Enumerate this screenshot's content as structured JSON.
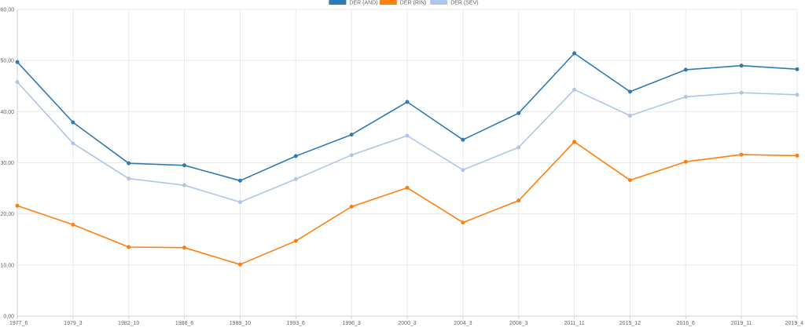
{
  "chart_data": {
    "type": "line",
    "categories": [
      "1977_6",
      "1979_3",
      "1982_10",
      "1986_6",
      "1989_10",
      "1993_6",
      "1996_3",
      "2000_3",
      "2004_3",
      "2008_3",
      "2011_11",
      "2015_12",
      "2016_6",
      "2019_11",
      "2019_4"
    ],
    "y_ticks": [
      "0,00",
      "10,00",
      "20,00",
      "30,00",
      "40,00",
      "50,00",
      "60,00"
    ],
    "ylim": [
      0,
      60
    ],
    "grid": true,
    "legend_position": "top-center",
    "series": [
      {
        "name": "DER (AND)",
        "color": "#2e7bb4",
        "values": [
          49.7,
          37.9,
          29.9,
          29.5,
          26.5,
          31.3,
          35.5,
          41.9,
          34.5,
          39.7,
          51.4,
          43.9,
          48.2,
          49.0,
          48.3
        ]
      },
      {
        "name": "DER (RIN)",
        "color": "#ff7f0e",
        "values": [
          21.6,
          17.9,
          13.5,
          13.4,
          10.1,
          14.7,
          21.4,
          25.1,
          18.3,
          22.6,
          34.1,
          26.6,
          30.2,
          31.6,
          31.4
        ]
      },
      {
        "name": "DER (SEV)",
        "color": "#aec7e8",
        "values": [
          45.8,
          33.8,
          26.9,
          25.6,
          22.3,
          26.8,
          31.5,
          35.3,
          28.6,
          33.0,
          44.3,
          39.2,
          42.9,
          43.7,
          43.3
        ]
      }
    ]
  }
}
